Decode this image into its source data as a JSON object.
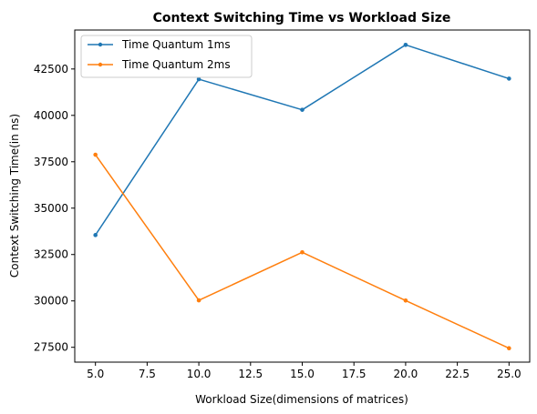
{
  "chart_data": {
    "type": "line",
    "title": "Context Switching Time vs Workload Size",
    "xlabel": "Workload Size(dimensions of matrices)",
    "ylabel": "Context Switching Time(in ns)",
    "x": [
      5,
      10,
      15,
      20,
      25
    ],
    "xlim": [
      4.0,
      26.0
    ],
    "ylim": [
      26700,
      44600
    ],
    "xticks": [
      5.0,
      7.5,
      10.0,
      12.5,
      15.0,
      17.5,
      20.0,
      22.5,
      25.0
    ],
    "xtick_labels": [
      "5.0",
      "7.5",
      "10.0",
      "12.5",
      "15.0",
      "17.5",
      "20.0",
      "22.5",
      "25.0"
    ],
    "yticks": [
      27500,
      30000,
      32500,
      35000,
      37500,
      40000,
      42500
    ],
    "ytick_labels": [
      "27500",
      "30000",
      "32500",
      "35000",
      "37500",
      "40000",
      "42500"
    ],
    "grid": false,
    "legend_position": "top-left",
    "series": [
      {
        "name": "Time Quantum 1ms",
        "color": "#1f77b4",
        "values": [
          33550,
          41950,
          40300,
          43800,
          41980
        ]
      },
      {
        "name": "Time Quantum 2ms",
        "color": "#ff7f0e",
        "values": [
          37880,
          30030,
          32620,
          30020,
          27450
        ]
      }
    ]
  }
}
